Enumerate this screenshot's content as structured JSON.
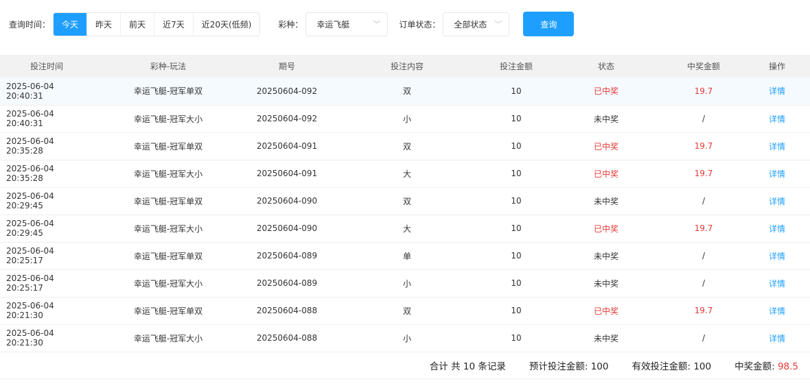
{
  "filters": {
    "time_label": "查询时间：",
    "time_options": [
      "今天",
      "昨天",
      "前天",
      "近7天",
      "近20天(低频)"
    ],
    "time_selected": "今天",
    "lottery_label": "彩种：",
    "lottery_value": "幸运飞艇",
    "status_label": "订单状态：",
    "status_value": "全部状态",
    "query_button": "查询"
  },
  "table": {
    "headers": [
      "投注时间",
      "彩种-玩法",
      "期号",
      "投注内容",
      "投注金额",
      "状态",
      "中奖金额",
      "操作"
    ],
    "rows": [
      [
        "2025-06-04 20:40:31",
        "幸运飞艇-冠军单双",
        "20250604-092",
        "双",
        "10",
        "已中奖",
        "19.7",
        "详情"
      ],
      [
        "2025-06-04 20:40:31",
        "幸运飞艇-冠军大小",
        "20250604-092",
        "小",
        "10",
        "未中奖",
        "/",
        "详情"
      ],
      [
        "2025-06-04 20:35:28",
        "幸运飞艇-冠军单双",
        "20250604-091",
        "双",
        "10",
        "已中奖",
        "19.7",
        "详情"
      ],
      [
        "2025-06-04 20:35:28",
        "幸运飞艇-冠军大小",
        "20250604-091",
        "大",
        "10",
        "已中奖",
        "19.7",
        "详情"
      ],
      [
        "2025-06-04 20:29:45",
        "幸运飞艇-冠军单双",
        "20250604-090",
        "双",
        "10",
        "未中奖",
        "/",
        "详情"
      ],
      [
        "2025-06-04 20:29:45",
        "幸运飞艇-冠军大小",
        "20250604-090",
        "大",
        "10",
        "已中奖",
        "19.7",
        "详情"
      ],
      [
        "2025-06-04 20:25:17",
        "幸运飞艇-冠军单双",
        "20250604-089",
        "单",
        "10",
        "未中奖",
        "/",
        "详情"
      ],
      [
        "2025-06-04 20:25:17",
        "幸运飞艇-冠军大小",
        "20250604-089",
        "小",
        "10",
        "未中奖",
        "/",
        "详情"
      ],
      [
        "2025-06-04 20:21:30",
        "幸运飞艇-冠军单双",
        "20250604-088",
        "双",
        "10",
        "已中奖",
        "19.7",
        "详情"
      ],
      [
        "2025-06-04 20:21:30",
        "幸运飞艇-冠军大小",
        "20250604-088",
        "小",
        "10",
        "未中奖",
        "/",
        "详情"
      ]
    ]
  },
  "footer": {
    "total": "合计 共 10 条记录",
    "expected_label": "预计投注金额: ",
    "expected_value": "100",
    "valid_label": "有效投注金额: ",
    "valid_value": "100",
    "win_label": "中奖金额: ",
    "win_value": "98.5"
  },
  "colors": {
    "accent": "#1e9fff",
    "win": "#e53935"
  }
}
